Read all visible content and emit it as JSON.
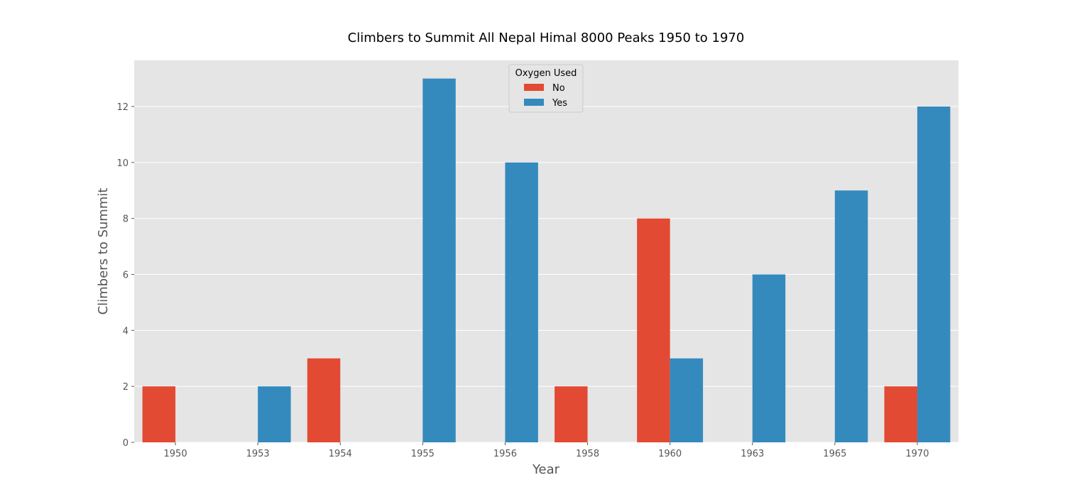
{
  "chart_data": {
    "type": "bar",
    "title": "Climbers to Summit All Nepal Himal 8000 Peaks 1950 to 1970",
    "xlabel": "Year",
    "ylabel": "Climbers to Summit",
    "categories": [
      "1950",
      "1953",
      "1954",
      "1955",
      "1956",
      "1958",
      "1960",
      "1963",
      "1965",
      "1970"
    ],
    "series": [
      {
        "name": "No",
        "color": "#E24A33",
        "values": [
          2,
          0,
          3,
          0,
          0,
          2,
          8,
          0,
          0,
          2
        ]
      },
      {
        "name": "Yes",
        "color": "#348ABD",
        "values": [
          0,
          2,
          0,
          13,
          10,
          0,
          3,
          6,
          9,
          12
        ]
      }
    ],
    "ylim": [
      0,
      13.65
    ],
    "yticks": [
      0,
      2,
      4,
      6,
      8,
      10,
      12
    ],
    "grid": true,
    "legend": {
      "title": "Oxygen Used",
      "position": "top-center"
    },
    "background_color": "#E5E5E5"
  }
}
